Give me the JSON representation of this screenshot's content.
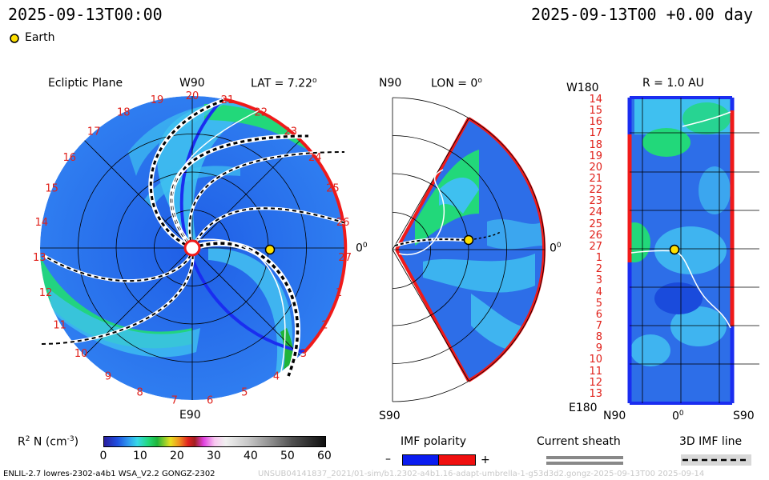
{
  "header": {
    "left_time": "2025-09-13T00:00",
    "right_time": "2025-09-13T00 +0.00 day"
  },
  "legend_earth": "Earth",
  "ecliptic": {
    "title": "Ecliptic Plane",
    "top_label": "W90",
    "lat_label": "LAT = 7.22",
    "lat_sup": "o",
    "bottom_label": "E90",
    "right_label": "0",
    "right_sup": "0",
    "rotation_numbers": [
      "19",
      "20",
      "21",
      "22",
      "23",
      "24",
      "25",
      "26",
      "27",
      "1",
      "2",
      "3",
      "4",
      "5",
      "6",
      "7",
      "8",
      "9",
      "10",
      "11",
      "12",
      "13",
      "14",
      "15",
      "16",
      "17",
      "18"
    ]
  },
  "meridional": {
    "top_label": "N90",
    "lon_label": "LON = 0",
    "lon_sup": "o",
    "right_label": "0",
    "right_sup": "0",
    "bottom_label": "S90"
  },
  "r_panel": {
    "title": "R = 1.0 AU",
    "top_left": "W180",
    "bottom_left": "E180",
    "x_labels": [
      "N90",
      "0",
      "S90"
    ],
    "x_mid_sup": "0",
    "y_labels": [
      "14",
      "15",
      "16",
      "17",
      "18",
      "19",
      "20",
      "21",
      "22",
      "23",
      "24",
      "25",
      "26",
      "27",
      "1",
      "2",
      "3",
      "4",
      "5",
      "6",
      "7",
      "8",
      "9",
      "10",
      "11",
      "12",
      "13"
    ]
  },
  "colorbar": {
    "label_main": "R",
    "label_sup": "2",
    "label_rest": " N (cm",
    "label_sup2": "-3",
    "label_end": ")",
    "ticks": [
      "0",
      "10",
      "20",
      "30",
      "40",
      "50",
      "60"
    ],
    "range": [
      0,
      60
    ]
  },
  "imf": {
    "title": "IMF polarity",
    "minus": "–",
    "plus": "+",
    "colors": {
      "negative": "#0a1cf0",
      "positive": "#f01010"
    }
  },
  "sheath": {
    "title": "Current sheath"
  },
  "imf_line": {
    "title": "3D IMF line"
  },
  "footer": {
    "left": "ENLIL-2.7 lowres-2302-a4b1 WSA_V2.2 GONGZ-2302",
    "right": "UNSUB04141837_2021/01-sim/b1.2302-a4b1.16-adapt-umbrella-1-g53d3d2.gongz-2025-09-13T00  2025-09-14"
  },
  "colors": {
    "background_fill": "#2d6ee8",
    "density_low": "#3fb4f0",
    "density_mid": "#22d87a",
    "density_high": "#1fb43a",
    "polarity_negative": "#1a2df0",
    "polarity_positive": "#f01a1a",
    "earth": "#ffe000"
  }
}
